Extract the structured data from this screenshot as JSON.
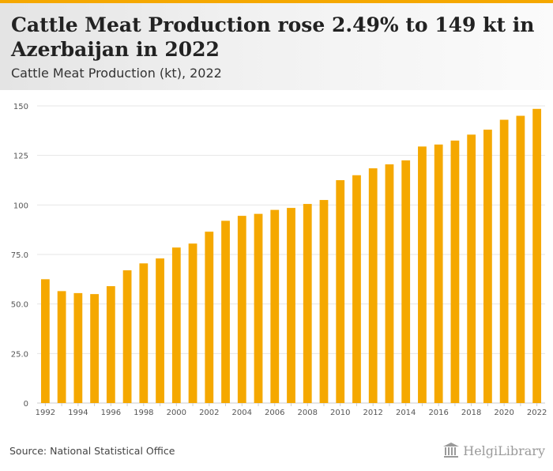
{
  "header": {
    "title": "Cattle Meat Production rose 2.49% to 149 kt in Azerbaijan in 2022",
    "subtitle": "Cattle Meat Production (kt), 2022"
  },
  "footer": {
    "source": "Source: National Statistical Office",
    "brand": "HelgiLibrary",
    "brand_icon": "library-building-icon"
  },
  "colors": {
    "accent": "#f5a800",
    "bar": "#f5a800",
    "grid": "#e6e6e6",
    "axis_text": "#555555"
  },
  "chart_data": {
    "type": "bar",
    "title": "Cattle Meat Production (kt), 2022",
    "xlabel": "",
    "ylabel": "",
    "ylim": [
      0,
      150
    ],
    "yticks": [
      0,
      25.0,
      50.0,
      75.0,
      100,
      125,
      150
    ],
    "ytick_labels": [
      "0",
      "25.0",
      "50.0",
      "75.0",
      "100",
      "125",
      "150"
    ],
    "categories": [
      "1992",
      "1993",
      "1994",
      "1995",
      "1996",
      "1997",
      "1998",
      "1999",
      "2000",
      "2001",
      "2002",
      "2003",
      "2004",
      "2005",
      "2006",
      "2007",
      "2008",
      "2009",
      "2010",
      "2011",
      "2012",
      "2013",
      "2014",
      "2015",
      "2016",
      "2017",
      "2018",
      "2019",
      "2020",
      "2021",
      "2022"
    ],
    "xtick_labels": [
      "1992",
      "",
      "1994",
      "",
      "1996",
      "",
      "1998",
      "",
      "2000",
      "",
      "2002",
      "",
      "2004",
      "",
      "2006",
      "",
      "2008",
      "",
      "2010",
      "",
      "2012",
      "",
      "2014",
      "",
      "2016",
      "",
      "2018",
      "",
      "2020",
      "",
      "2022"
    ],
    "values": [
      62.5,
      56.5,
      55.5,
      55.0,
      59.0,
      67.0,
      70.5,
      73.0,
      78.5,
      80.5,
      86.5,
      92.0,
      94.5,
      95.5,
      97.5,
      98.5,
      100.5,
      102.5,
      112.5,
      115.0,
      118.5,
      120.5,
      122.5,
      129.5,
      130.5,
      132.5,
      135.5,
      138.0,
      143.0,
      145.0,
      148.5
    ],
    "grid": true,
    "legend": "none"
  }
}
